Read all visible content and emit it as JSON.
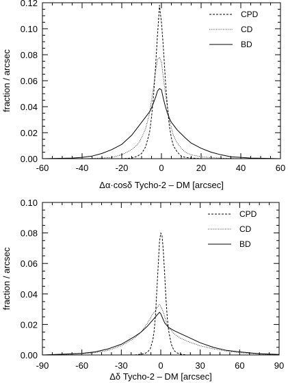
{
  "colors": {
    "ink": "#000000",
    "background": "#ffffff"
  },
  "chart_data": [
    {
      "type": "line",
      "xlabel": "Δα·cosδ  Tycho-2 – DM  [arcsec]",
      "ylabel": "fraction / arcsec",
      "xlim": [
        -60,
        60
      ],
      "ylim": [
        0,
        0.12
      ],
      "x_ticks": [
        -60,
        -40,
        -20,
        0,
        20,
        40,
        60
      ],
      "x_tick_labels": [
        "-60",
        "-40",
        "-20",
        "0",
        "20",
        "40",
        "60"
      ],
      "y_ticks": [
        0,
        0.02,
        0.04,
        0.06,
        0.08,
        0.1,
        0.12
      ],
      "y_tick_labels": [
        "0.00",
        "0.02",
        "0.04",
        "0.06",
        "0.08",
        "0.10",
        "0.12"
      ],
      "grid": false,
      "legend_position": "top-right",
      "series": [
        {
          "name": "CPD",
          "style": "dashed",
          "x": [
            -60,
            -20,
            -15,
            -12,
            -10,
            -8,
            -6,
            -5,
            -4,
            -3,
            -2,
            -1.5,
            -1,
            0,
            1,
            2,
            3,
            4,
            5,
            6,
            8,
            10,
            12,
            15,
            20,
            60
          ],
          "y": [
            0.0,
            0.0,
            0.0005,
            0.002,
            0.004,
            0.009,
            0.02,
            0.032,
            0.048,
            0.07,
            0.095,
            0.106,
            0.118,
            0.105,
            0.085,
            0.06,
            0.04,
            0.025,
            0.016,
            0.01,
            0.005,
            0.002,
            0.001,
            0.0005,
            0.0,
            0.0
          ]
        },
        {
          "name": "CD",
          "style": "dotted",
          "x": [
            -60,
            -40,
            -30,
            -25,
            -20,
            -15,
            -12,
            -10,
            -8,
            -6,
            -5,
            -4,
            -3,
            -2,
            -1,
            0,
            1,
            2,
            3,
            4,
            5,
            6,
            8,
            10,
            12,
            15,
            20,
            25,
            30,
            40,
            60
          ],
          "y": [
            0.0,
            0.0,
            0.0005,
            0.001,
            0.003,
            0.007,
            0.011,
            0.016,
            0.023,
            0.035,
            0.045,
            0.055,
            0.067,
            0.076,
            0.078,
            0.074,
            0.062,
            0.05,
            0.04,
            0.03,
            0.024,
            0.018,
            0.012,
            0.008,
            0.005,
            0.003,
            0.0015,
            0.0008,
            0.0004,
            0.0,
            0.0
          ]
        },
        {
          "name": "BD",
          "style": "solid",
          "x": [
            -60,
            -45,
            -40,
            -35,
            -30,
            -25,
            -20,
            -15,
            -12,
            -10,
            -8,
            -6,
            -5,
            -4,
            -3,
            -2,
            -1,
            0,
            1,
            2,
            3,
            4,
            5,
            6,
            8,
            10,
            12,
            15,
            20,
            25,
            30,
            35,
            40,
            45,
            60
          ],
          "y": [
            0.0,
            0.0005,
            0.001,
            0.002,
            0.004,
            0.007,
            0.011,
            0.018,
            0.024,
            0.028,
            0.032,
            0.036,
            0.039,
            0.043,
            0.047,
            0.052,
            0.054,
            0.053,
            0.046,
            0.04,
            0.035,
            0.031,
            0.028,
            0.026,
            0.022,
            0.019,
            0.016,
            0.012,
            0.008,
            0.005,
            0.003,
            0.0015,
            0.001,
            0.0005,
            0.0
          ]
        }
      ]
    },
    {
      "type": "line",
      "xlabel": "Δδ  Tycho-2 – DM  [arcsec]",
      "ylabel": "fraction / arcsec",
      "xlim": [
        -90,
        90
      ],
      "ylim": [
        0,
        0.1
      ],
      "x_ticks": [
        -90,
        -60,
        -30,
        0,
        30,
        60,
        90
      ],
      "x_tick_labels": [
        "-90",
        "-60",
        "-30",
        "0",
        "30",
        "60",
        "90"
      ],
      "y_ticks": [
        0,
        0.02,
        0.04,
        0.06,
        0.08,
        0.1
      ],
      "y_tick_labels": [
        "0.00",
        "0.02",
        "0.04",
        "0.06",
        "0.08",
        "0.10"
      ],
      "grid": false,
      "legend_position": "top-right",
      "series": [
        {
          "name": "CPD",
          "style": "dashed",
          "x": [
            -90,
            -20,
            -15,
            -12,
            -10,
            -8,
            -6,
            -5,
            -4,
            -3,
            -2,
            -1,
            0,
            1,
            2,
            3,
            4,
            5,
            6,
            8,
            10,
            12,
            15,
            20,
            90
          ],
          "y": [
            0.0,
            0.0,
            0.0005,
            0.001,
            0.002,
            0.004,
            0.01,
            0.016,
            0.026,
            0.042,
            0.058,
            0.074,
            0.08,
            0.078,
            0.068,
            0.052,
            0.036,
            0.024,
            0.016,
            0.007,
            0.003,
            0.0015,
            0.0005,
            0.0,
            0.0
          ]
        },
        {
          "name": "CD",
          "style": "dotted",
          "x": [
            -90,
            -75,
            -60,
            -50,
            -40,
            -30,
            -20,
            -15,
            -10,
            -8,
            -6,
            -4,
            -3,
            -2,
            -1,
            0,
            1,
            2,
            3,
            4,
            6,
            8,
            10,
            15,
            20,
            30,
            40,
            50,
            60,
            75,
            90
          ],
          "y": [
            0.0,
            0.0003,
            0.0008,
            0.0015,
            0.003,
            0.006,
            0.011,
            0.015,
            0.021,
            0.024,
            0.027,
            0.029,
            0.031,
            0.032,
            0.033,
            0.032,
            0.03,
            0.028,
            0.025,
            0.022,
            0.018,
            0.016,
            0.014,
            0.011,
            0.009,
            0.006,
            0.004,
            0.0025,
            0.0015,
            0.0006,
            0.0002
          ]
        },
        {
          "name": "BD",
          "style": "solid",
          "x": [
            -90,
            -75,
            -60,
            -50,
            -40,
            -30,
            -20,
            -15,
            -10,
            -8,
            -6,
            -4,
            -3,
            -2,
            -1,
            0,
            1,
            2,
            3,
            4,
            6,
            8,
            10,
            15,
            20,
            30,
            40,
            50,
            60,
            75,
            90
          ],
          "y": [
            0.0,
            0.0005,
            0.001,
            0.002,
            0.004,
            0.007,
            0.012,
            0.015,
            0.019,
            0.021,
            0.023,
            0.025,
            0.026,
            0.027,
            0.028,
            0.027,
            0.025,
            0.023,
            0.021,
            0.02,
            0.018,
            0.017,
            0.016,
            0.014,
            0.012,
            0.008,
            0.005,
            0.003,
            0.002,
            0.0008,
            0.0003
          ]
        }
      ]
    }
  ]
}
